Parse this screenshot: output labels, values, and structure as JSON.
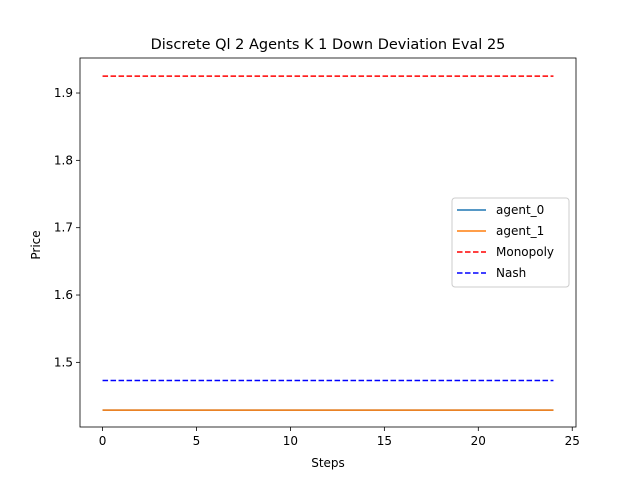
{
  "chart_data": {
    "type": "line",
    "title": "Discrete Ql 2 Agents K 1 Down Deviation Eval 25",
    "xlabel": "Steps",
    "ylabel": "Price",
    "xlim": [
      -1.2,
      25.2
    ],
    "ylim": [
      1.404,
      1.952
    ],
    "xticks": [
      0,
      5,
      10,
      15,
      20,
      25
    ],
    "yticks": [
      1.5,
      1.6,
      1.7,
      1.8,
      1.9
    ],
    "ytick_labels": [
      "1.5",
      "1.6",
      "1.7",
      "1.8",
      "1.9"
    ],
    "grid": false,
    "legend_position": "center-right",
    "x": [
      0,
      1,
      2,
      3,
      4,
      5,
      6,
      7,
      8,
      9,
      10,
      11,
      12,
      13,
      14,
      15,
      16,
      17,
      18,
      19,
      20,
      21,
      22,
      23,
      24
    ],
    "series": [
      {
        "name": "agent_0",
        "style": "solid",
        "color": "#1f77b4",
        "values": [
          1.429,
          1.429,
          1.429,
          1.429,
          1.429,
          1.429,
          1.429,
          1.429,
          1.429,
          1.429,
          1.429,
          1.429,
          1.429,
          1.429,
          1.429,
          1.429,
          1.429,
          1.429,
          1.429,
          1.429,
          1.429,
          1.429,
          1.429,
          1.429,
          1.429
        ]
      },
      {
        "name": "agent_1",
        "style": "solid",
        "color": "#ff7f0e",
        "values": [
          1.429,
          1.429,
          1.429,
          1.429,
          1.429,
          1.429,
          1.429,
          1.429,
          1.429,
          1.429,
          1.429,
          1.429,
          1.429,
          1.429,
          1.429,
          1.429,
          1.429,
          1.429,
          1.429,
          1.429,
          1.429,
          1.429,
          1.429,
          1.429,
          1.429
        ]
      },
      {
        "name": "Monopoly",
        "style": "dashed",
        "color": "#ff0000",
        "values": [
          1.925,
          1.925,
          1.925,
          1.925,
          1.925,
          1.925,
          1.925,
          1.925,
          1.925,
          1.925,
          1.925,
          1.925,
          1.925,
          1.925,
          1.925,
          1.925,
          1.925,
          1.925,
          1.925,
          1.925,
          1.925,
          1.925,
          1.925,
          1.925,
          1.925
        ]
      },
      {
        "name": "Nash",
        "style": "dashed",
        "color": "#0000ff",
        "values": [
          1.473,
          1.473,
          1.473,
          1.473,
          1.473,
          1.473,
          1.473,
          1.473,
          1.473,
          1.473,
          1.473,
          1.473,
          1.473,
          1.473,
          1.473,
          1.473,
          1.473,
          1.473,
          1.473,
          1.473,
          1.473,
          1.473,
          1.473,
          1.473,
          1.473
        ]
      }
    ]
  }
}
